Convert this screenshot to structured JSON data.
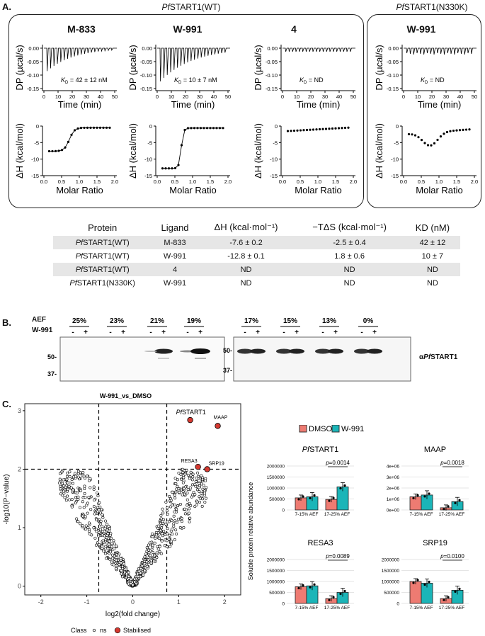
{
  "panelA": {
    "letter": "A.",
    "header_wt_prefix": "Pf",
    "header_wt": "START1(WT)",
    "header_mut_prefix": "Pf",
    "header_mut": "START1(N330K)",
    "plots": [
      {
        "ligand": "M-833",
        "kd_text": "= 42 ± 12 nM"
      },
      {
        "ligand": "W-991",
        "kd_text": "= 10 ± 7 nM"
      },
      {
        "ligand": "4",
        "kd_text": "= ND"
      },
      {
        "ligand": "W-991",
        "kd_text": "= ND"
      }
    ],
    "kd_symbol": "K",
    "kd_sub": "D",
    "dp_ylabel": "DP (µcal/s)",
    "dp_xlabel": "Time (min)",
    "dh_ylabel": "ΔH (kcal/mol)",
    "dh_xlabel": "Molar Ratio",
    "table": {
      "headers": [
        "Protein",
        "Ligand",
        "ΔH  (kcal·mol⁻¹)",
        "−TΔS (kcal·mol⁻¹)",
        "KD (nM)"
      ],
      "rows": [
        {
          "prefix": "Pf",
          "protein": "START1(WT)",
          "ligand": "M-833",
          "dh": "-7.6 ± 0.2",
          "tds": "-2.5 ± 0.4",
          "kd": "42 ± 12"
        },
        {
          "prefix": "Pf",
          "protein": "START1(WT)",
          "ligand": "W-991",
          "dh": "-12.8 ± 0.1",
          "tds": "1.8 ± 0.6",
          "kd": "10 ± 7"
        },
        {
          "prefix": "Pf",
          "protein": "START1(WT)",
          "ligand": "4",
          "dh": "ND",
          "tds": "ND",
          "kd": "ND"
        },
        {
          "prefix": "Pf",
          "protein": "START1(N330K)",
          "ligand": "W-991",
          "dh": "ND",
          "tds": "ND",
          "kd": "ND"
        }
      ]
    }
  },
  "panelB": {
    "letter": "B.",
    "aef_label": "AEF",
    "drug_label": "W-991",
    "aef_values": [
      "25%",
      "23%",
      "21%",
      "19%",
      "17%",
      "15%",
      "13%",
      "0%"
    ],
    "minus": "-",
    "plus": "+",
    "mw_left": [
      "50-",
      "37-"
    ],
    "mw_right": [
      "50-",
      "37-"
    ],
    "antibody_prefix": "α",
    "antibody_italic": "Pf",
    "antibody": "START1"
  },
  "panelC": {
    "letter": "C.",
    "volcano": {
      "title": "W-991_vs_DMSO",
      "xlabel": "log2(fold change)",
      "ylabel": "-log10(P−value)",
      "xticks": [
        "-2",
        "-1",
        "0",
        "1",
        "2"
      ],
      "yticks": [
        "0",
        "1",
        "2",
        "3"
      ],
      "legend_title": "Class",
      "legend_ns": "ns",
      "legend_stab": "Stabilised",
      "labels": {
        "pfstart1_prefix": "Pf",
        "pfstart1": "START1",
        "maap": "MAAP",
        "resa3": "RESA3",
        "srp19": "SRP19"
      }
    },
    "bars": {
      "legend_dmso": "DMSO",
      "legend_w991": "W-991",
      "ylabel": "Soluble protein relative abundance",
      "group1": "7-15% AEF",
      "group2": "17-25% AEF",
      "p_prefix": "p",
      "panels": [
        {
          "title_prefix": "Pf",
          "title": "START1",
          "pval": "=0.0014",
          "yticks": [
            "0",
            "500000",
            "1000000",
            "1500000",
            "2000000"
          ]
        },
        {
          "title_prefix": "",
          "title": "MAAP",
          "pval": "=0.0018",
          "yticks": [
            "0e+00",
            "1e+06",
            "2e+06",
            "3e+06",
            "4e+06"
          ]
        },
        {
          "title_prefix": "",
          "title": "RESA3",
          "pval": "=0.0089",
          "yticks": [
            "0",
            "500000",
            "1000000",
            "1500000",
            "2000000"
          ]
        },
        {
          "title_prefix": "",
          "title": "SRP19",
          "pval": "=0.0100",
          "yticks": [
            "0",
            "500000",
            "1000000",
            "1500000",
            "2000000"
          ]
        }
      ]
    },
    "colors": {
      "dmso": "#ee7b72",
      "w991": "#1bb5b8",
      "stabilised": "#d63a31"
    }
  }
}
